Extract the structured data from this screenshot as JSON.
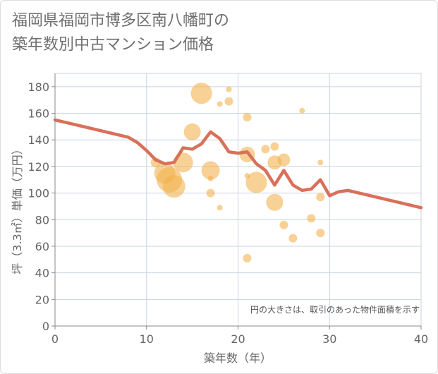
{
  "header": {
    "title_line1": "福岡県福岡市博多区南八幡町の",
    "title_line2": "築年数別中古マンション価格"
  },
  "chart_data": {
    "type": "scatter",
    "title": "福岡県福岡市博多区南八幡町の築年数別中古マンション価格",
    "xlabel": "築年数（年）",
    "ylabel": "坪（3.3㎡）単価（万円）",
    "xlim": [
      0,
      40
    ],
    "ylim": [
      0,
      190
    ],
    "x_ticks": [
      0,
      10,
      20,
      30,
      40
    ],
    "y_ticks": [
      0,
      20,
      40,
      60,
      80,
      100,
      120,
      140,
      160,
      180
    ],
    "grid": true,
    "note": "円の大きさは、取引のあった物件面積を示す",
    "colors": {
      "bubble": "#f2b24f",
      "line": "#d9705a",
      "grid": "#c8d3e0",
      "axis": "#888888"
    },
    "series": [
      {
        "kind": "bubble",
        "points": [
          {
            "x": 11,
            "y": 123,
            "size": 7
          },
          {
            "x": 12,
            "y": 115,
            "size": 15
          },
          {
            "x": 12.5,
            "y": 110,
            "size": 18
          },
          {
            "x": 13,
            "y": 105,
            "size": 16
          },
          {
            "x": 14,
            "y": 123,
            "size": 14
          },
          {
            "x": 15,
            "y": 146,
            "size": 12
          },
          {
            "x": 16,
            "y": 175,
            "size": 15
          },
          {
            "x": 17,
            "y": 117,
            "size": 13
          },
          {
            "x": 17,
            "y": 111,
            "size": 4
          },
          {
            "x": 17,
            "y": 100,
            "size": 6
          },
          {
            "x": 18,
            "y": 167,
            "size": 4
          },
          {
            "x": 18,
            "y": 89,
            "size": 4
          },
          {
            "x": 19,
            "y": 178,
            "size": 4
          },
          {
            "x": 19,
            "y": 169,
            "size": 6
          },
          {
            "x": 21,
            "y": 157,
            "size": 6
          },
          {
            "x": 21,
            "y": 129,
            "size": 11
          },
          {
            "x": 21,
            "y": 113,
            "size": 4
          },
          {
            "x": 21,
            "y": 51,
            "size": 6
          },
          {
            "x": 22,
            "y": 108,
            "size": 15
          },
          {
            "x": 23,
            "y": 133,
            "size": 6
          },
          {
            "x": 24,
            "y": 135,
            "size": 6
          },
          {
            "x": 24,
            "y": 123,
            "size": 10
          },
          {
            "x": 24,
            "y": 93,
            "size": 12
          },
          {
            "x": 25,
            "y": 125,
            "size": 9
          },
          {
            "x": 25,
            "y": 76,
            "size": 6
          },
          {
            "x": 26,
            "y": 66,
            "size": 6
          },
          {
            "x": 27,
            "y": 162,
            "size": 4
          },
          {
            "x": 28,
            "y": 81,
            "size": 6
          },
          {
            "x": 29,
            "y": 123,
            "size": 4
          },
          {
            "x": 29,
            "y": 97,
            "size": 6
          },
          {
            "x": 29,
            "y": 70,
            "size": 6
          }
        ]
      },
      {
        "kind": "line",
        "points": [
          [
            0,
            155
          ],
          [
            8,
            142
          ],
          [
            9,
            138
          ],
          [
            10,
            132
          ],
          [
            11,
            125
          ],
          [
            12,
            122
          ],
          [
            13,
            123
          ],
          [
            14,
            134
          ],
          [
            15,
            133
          ],
          [
            16,
            137
          ],
          [
            17,
            146
          ],
          [
            18,
            141
          ],
          [
            19,
            131
          ],
          [
            20,
            130
          ],
          [
            21,
            131
          ],
          [
            22,
            122
          ],
          [
            23,
            117
          ],
          [
            24,
            106
          ],
          [
            25,
            117
          ],
          [
            26,
            106
          ],
          [
            27,
            102
          ],
          [
            28,
            103
          ],
          [
            29,
            110
          ],
          [
            30,
            98
          ],
          [
            31,
            101
          ],
          [
            32,
            102
          ],
          [
            40,
            89
          ]
        ]
      }
    ]
  }
}
